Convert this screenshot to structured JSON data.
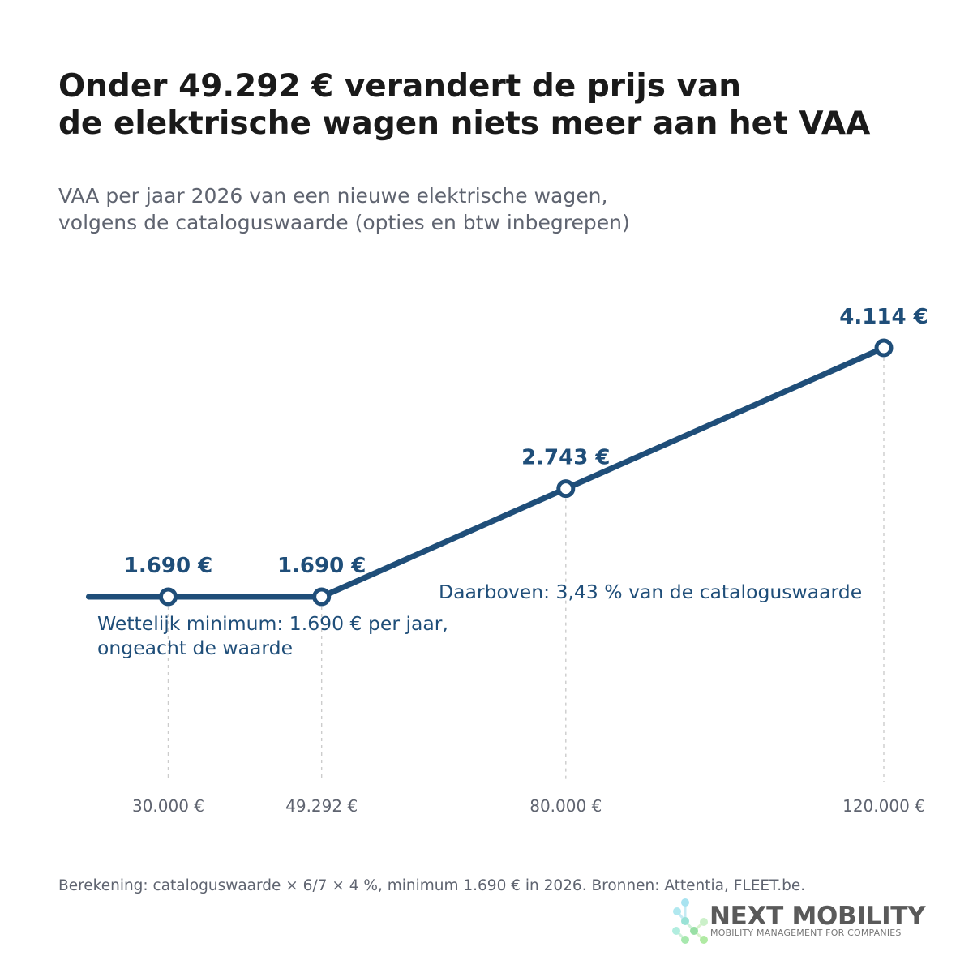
{
  "title_lines": [
    "Onder 49.292 € verandert de prijs van",
    "de elektrische wagen niets meer aan het VAA"
  ],
  "subtitle_lines": [
    "VAA per jaar 2026 van een nieuwe elektrische wagen,",
    "volgens de cataloguswaarde (opties en btw inbegrepen)"
  ],
  "footnote": "Berekening: cataloguswaarde × 6/7 × 4 %, minimum 1.690 € in 2026. Bronnen: Attentia, FLEET.be.",
  "brand": {
    "name": "NEXT MOBILITY",
    "tagline": "MOBILITY MANAGEMENT FOR COMPANIES"
  },
  "colors": {
    "line": "#1f4e79",
    "annotation": "#1f4e79",
    "grid": "#cccccc",
    "tick": "#5f6470"
  },
  "chart_data": {
    "type": "line",
    "title": "Onder 49.292 € verandert de prijs van de elektrische wagen niets meer aan het VAA",
    "subtitle": "VAA per jaar 2026 van een nieuwe elektrische wagen, volgens de cataloguswaarde (opties en btw inbegrepen)",
    "xlabel": "",
    "ylabel": "",
    "grid": "vertical dashed at marked points",
    "legend": "none",
    "line_start_x": 20000,
    "points": [
      {
        "x": 30000,
        "y": 1690,
        "label": "1.690 €",
        "tick": "30.000 €"
      },
      {
        "x": 49292,
        "y": 1690,
        "label": "1.690 €",
        "tick": "49.292 €"
      },
      {
        "x": 80000,
        "y": 2743,
        "label": "2.743 €",
        "tick": "80.000 €"
      },
      {
        "x": 120000,
        "y": 4114,
        "label": "4.114 €",
        "tick": "120.000 €"
      }
    ],
    "annotations": [
      {
        "id": "minimum",
        "lines": [
          "Wettelijk minimum: 1.690 € per jaar,",
          "ongeacht de waarde"
        ]
      },
      {
        "id": "above",
        "lines": [
          "Daarboven: 3,43 % van de cataloguswaarde"
        ]
      }
    ]
  }
}
